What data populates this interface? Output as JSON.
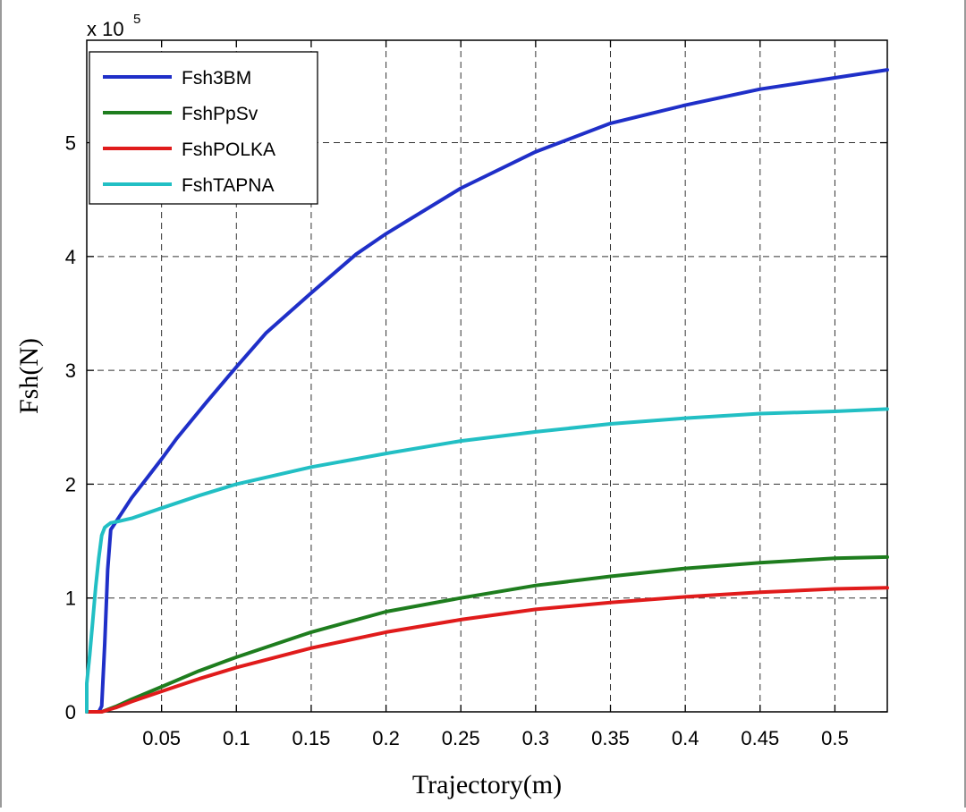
{
  "chart_data": {
    "type": "line",
    "xlabel": "Trajectory(m)",
    "ylabel": "Fsh(N)",
    "y_multiplier": "x 10",
    "y_multiplier_exp": "5",
    "xlim": [
      0.0,
      0.535
    ],
    "ylim": [
      0,
      5.9
    ],
    "x_ticks": [
      0.05,
      0.1,
      0.15,
      0.2,
      0.25,
      0.3,
      0.35,
      0.4,
      0.45,
      0.5
    ],
    "x_tick_labels": [
      "0.05",
      "0.1",
      "0.15",
      "0.2",
      "0.25",
      "0.3",
      "0.35",
      "0.4",
      "0.45",
      "0.5"
    ],
    "y_ticks": [
      0,
      1,
      2,
      3,
      4,
      5
    ],
    "y_tick_labels": [
      "0",
      "1",
      "2",
      "3",
      "4",
      "5"
    ],
    "grid": true,
    "legend_position": "top-left",
    "series": [
      {
        "name": "Fsh3BM",
        "color": "#1f2fc8",
        "x": [
          0.0,
          0.008,
          0.01,
          0.012,
          0.014,
          0.016,
          0.02,
          0.03,
          0.04,
          0.05,
          0.06,
          0.07,
          0.08,
          0.1,
          0.12,
          0.15,
          0.18,
          0.2,
          0.25,
          0.3,
          0.35,
          0.4,
          0.45,
          0.5,
          0.535
        ],
        "values": [
          0.0,
          0.0,
          0.05,
          0.6,
          1.25,
          1.6,
          1.68,
          1.88,
          2.05,
          2.22,
          2.4,
          2.56,
          2.72,
          3.03,
          3.33,
          3.68,
          4.02,
          4.2,
          4.6,
          4.92,
          5.17,
          5.33,
          5.47,
          5.57,
          5.64
        ]
      },
      {
        "name": "FshPpSv",
        "color": "#1e7d1e",
        "x": [
          0.0,
          0.008,
          0.01,
          0.02,
          0.03,
          0.05,
          0.075,
          0.1,
          0.15,
          0.2,
          0.25,
          0.3,
          0.35,
          0.4,
          0.45,
          0.5,
          0.535
        ],
        "values": [
          0.0,
          0.0,
          0.0,
          0.05,
          0.11,
          0.22,
          0.36,
          0.48,
          0.7,
          0.88,
          1.0,
          1.11,
          1.19,
          1.26,
          1.31,
          1.35,
          1.36
        ]
      },
      {
        "name": "FshPOLKA",
        "color": "#e01b1b",
        "x": [
          0.0,
          0.008,
          0.01,
          0.02,
          0.03,
          0.05,
          0.075,
          0.1,
          0.15,
          0.2,
          0.25,
          0.3,
          0.35,
          0.4,
          0.45,
          0.5,
          0.535
        ],
        "values": [
          0.0,
          0.0,
          0.0,
          0.04,
          0.09,
          0.18,
          0.29,
          0.39,
          0.56,
          0.7,
          0.81,
          0.9,
          0.96,
          1.01,
          1.05,
          1.08,
          1.09
        ]
      },
      {
        "name": "FshTAPNA",
        "color": "#22bfc4",
        "x": [
          0.0,
          0.0,
          0.002,
          0.004,
          0.006,
          0.008,
          0.01,
          0.012,
          0.014,
          0.016,
          0.02,
          0.03,
          0.05,
          0.075,
          0.1,
          0.15,
          0.2,
          0.25,
          0.3,
          0.35,
          0.4,
          0.45,
          0.5,
          0.535
        ],
        "values": [
          0.0,
          0.25,
          0.5,
          0.8,
          1.1,
          1.35,
          1.55,
          1.62,
          1.64,
          1.66,
          1.67,
          1.7,
          1.79,
          1.9,
          2.0,
          2.15,
          2.27,
          2.38,
          2.46,
          2.53,
          2.58,
          2.62,
          2.64,
          2.66
        ]
      }
    ]
  }
}
